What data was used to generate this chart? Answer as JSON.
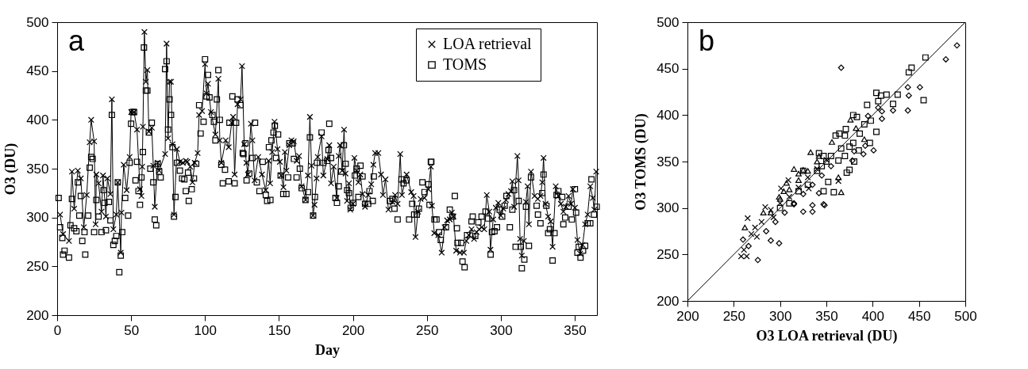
{
  "chart_data": [
    {
      "type": "line",
      "xlabel": "Day",
      "ylabel": "O3 (DU)",
      "annotations": [
        "a"
      ],
      "xlim": [
        0,
        365
      ],
      "xticks": [
        0,
        50,
        100,
        150,
        200,
        250,
        300,
        350
      ],
      "ylim": [
        200,
        500
      ],
      "yticks": [
        200,
        250,
        300,
        350,
        400,
        450,
        500
      ],
      "legend": "top right",
      "series": [
        {
          "name": "LOA retrieval",
          "marker": "cross",
          "color": "#000000",
          "x": [
            2,
            4,
            8,
            10,
            11.5,
            14,
            16,
            18,
            20,
            22,
            23,
            25,
            26,
            26.5,
            28,
            30,
            31,
            33,
            34,
            36,
            37,
            38,
            40,
            41,
            43,
            43.5,
            45,
            47,
            49,
            50,
            52,
            54,
            56,
            57,
            57.5,
            58,
            59,
            60,
            61,
            62,
            64,
            65,
            66,
            68,
            69,
            73,
            74,
            75,
            76,
            77,
            78,
            79,
            81,
            83,
            85,
            87,
            88,
            90,
            91.5,
            93,
            95,
            96,
            98,
            100,
            101,
            102,
            104,
            107,
            109,
            110,
            111,
            114,
            116,
            118,
            119,
            120,
            122,
            124,
            125,
            126.5,
            128,
            129,
            131,
            132,
            133.5,
            136,
            138.5,
            141,
            143,
            144,
            145.4,
            147,
            149,
            150.6,
            151.5,
            153,
            154,
            155,
            157,
            158.4,
            160,
            162,
            163.6,
            165.3,
            168,
            169.6,
            170.9,
            172,
            173,
            174,
            175.4,
            176.2,
            178.8,
            180,
            182.6,
            184,
            185.2,
            187,
            189,
            190.4,
            191.3,
            192.7,
            194,
            195,
            196,
            197.3,
            198.2,
            200,
            201,
            202.5,
            203.7,
            205,
            206.5,
            208.2,
            210.3,
            212.4,
            213.8,
            215,
            217.2,
            219,
            220.3,
            222,
            224,
            226.7,
            228.5,
            230.2,
            232,
            233.1,
            236.3,
            239.4,
            241,
            242.3,
            244,
            245.8,
            248.4,
            251,
            252.7,
            253.4,
            255,
            257.7,
            260,
            262,
            263.7,
            265.5,
            266.9,
            268,
            269.8,
            272.4,
            275,
            276.7,
            278.4,
            280.2,
            281.9,
            283.6,
            285.3,
            287,
            288.8,
            290.5,
            292.2,
            293,
            294.8,
            296.6,
            298.3,
            300,
            301.7,
            303.5,
            305.2,
            306.9,
            307.8,
            309,
            311.2,
            312,
            313,
            314.2,
            315.6,
            317,
            318.1,
            319,
            320.4,
            322.8,
            325,
            326.8,
            328,
            328.9,
            330.2,
            332,
            333.7,
            335,
            337.1,
            338.9,
            340.6,
            342.3,
            344,
            345.8,
            347.5,
            348.7,
            350.1,
            351.8,
            353.6,
            355.3,
            357,
            358.7,
            360.5,
            362.2,
            363.2,
            364.5
          ],
          "values": [
            303,
            283,
            276,
            347,
            309,
            348,
            340,
            290,
            323,
            377,
            400,
            378,
            293,
            344,
            335,
            306,
            343,
            301,
            340,
            324,
            421,
            288,
            303,
            336,
            264,
            305,
            354,
            328,
            362,
            408,
            408,
            390,
            329,
            322,
            352,
            393,
            490,
            439,
            451,
            388,
            392,
            353,
            311,
            356,
            348,
            365,
            478,
            381,
            439,
            439,
            375,
            303,
            370,
            357,
            356,
            358,
            357,
            352,
            336,
            356,
            366,
            405,
            409,
            457,
            427,
            437,
            408,
            385,
            442,
            379,
            356,
            379,
            372,
            397,
            403,
            344,
            416,
            421,
            455,
            375,
            356,
            344,
            396,
            379,
            338,
            362,
            344,
            328,
            358,
            335,
            367,
            398,
            370,
            357,
            343,
            331,
            367,
            348,
            374,
            379,
            378,
            358,
            363,
            332,
            318,
            343,
            403,
            353,
            302,
            313,
            340,
            362,
            383,
            343,
            360,
            374,
            335,
            352,
            320,
            363,
            374,
            348,
            390,
            345,
            317,
            335,
            308,
            314,
            361,
            348,
            336,
            344,
            324,
            311,
            323,
            334,
            354,
            366,
            366,
            344,
            323,
            339,
            308,
            316,
            323,
            314,
            365,
            323,
            344,
            326,
            322,
            280,
            306,
            319,
            320,
            329,
            352,
            312,
            284,
            282,
            264,
            290,
            297,
            298,
            305,
            301,
            266,
            264,
            264,
            276,
            282,
            288,
            278,
            285,
            288,
            290,
            288,
            323,
            306,
            267,
            298,
            310,
            315,
            302,
            309,
            318,
            324,
            327,
            337,
            311,
            363,
            338,
            278,
            261,
            276,
            316,
            332,
            293,
            347,
            322,
            319,
            322,
            336,
            361,
            314,
            301,
            296,
            270,
            332,
            322,
            314,
            306,
            311,
            322,
            314,
            329,
            310,
            277,
            263,
            272,
            293,
            303,
            332,
            320,
            308,
            347
          ]
        },
        {
          "name": "TOMS",
          "type": "scatter",
          "marker": "square",
          "color": "#000000",
          "x": [
            1,
            2,
            3.5,
            4,
            5,
            8,
            9,
            10,
            11.5,
            13,
            14,
            15,
            16,
            17,
            18.5,
            19,
            21,
            22,
            23,
            24,
            25,
            26.5,
            28,
            30,
            31.4,
            32,
            33,
            35,
            36,
            37,
            38,
            39,
            40,
            41,
            42,
            43,
            44,
            46,
            48,
            49,
            50,
            51,
            52,
            53,
            54,
            55,
            56,
            57,
            58,
            58.7,
            60,
            61,
            62,
            63,
            64,
            65,
            66,
            67,
            68,
            69,
            70,
            73,
            74,
            75,
            76,
            77,
            78,
            79,
            80,
            81,
            83,
            84.5,
            86,
            87,
            88.5,
            89,
            91,
            92.5,
            94,
            96,
            97,
            99,
            100,
            101,
            102,
            103,
            105,
            106,
            107,
            108,
            109,
            110,
            111,
            112,
            113.5,
            116,
            116.5,
            118.5,
            120,
            121,
            122,
            124,
            125.5,
            126,
            127.3,
            128.1,
            129.9,
            132,
            133.8,
            135,
            136.8,
            139,
            141.1,
            142,
            143.2,
            144.2,
            144.9,
            146.3,
            147.2,
            148,
            149.4,
            151.1,
            152.9,
            155,
            156.2,
            157,
            159.3,
            160.1,
            161.9,
            164.1,
            165.3,
            167.9,
            169.6,
            170.9,
            173.1,
            174.3,
            175.7,
            178.8,
            180,
            182.6,
            183.5,
            184,
            185.2,
            188.2,
            189.2,
            190.4,
            192.1,
            193.9,
            195.1,
            196.1,
            197.3,
            198.5,
            200.3,
            201.3,
            202.5,
            203.7,
            205.1,
            206.5,
            208.2,
            210.3,
            211.2,
            213.4,
            214.1,
            225,
            226.7,
            228.1,
            230.2,
            232.8,
            234.2,
            236.3,
            238,
            240.1,
            241.4,
            243.2,
            244.6,
            247,
            248.4,
            251,
            251.8,
            252.7,
            253,
            255.1,
            256.5,
            258.2,
            259.4,
            262.9,
            265.5,
            267.2,
            268.9,
            270.3,
            270.7,
            273.2,
            274.1,
            275.5,
            277.2,
            280.2,
            281,
            282.7,
            284.8,
            287,
            289.7,
            291.4,
            293.1,
            294,
            295.7,
            297.4,
            299.2,
            300.9,
            302.6,
            303.8,
            306.1,
            307.8,
            309,
            310,
            312.1,
            313.5,
            314.2,
            315.9,
            317,
            319,
            320.4,
            324.2,
            325.1,
            326.8,
            328,
            328.9,
            330.8,
            332,
            333.2,
            335,
            336.3,
            337.7,
            338.9,
            341.5,
            342.3,
            343.5,
            345.8,
            348,
            350.1,
            350.9,
            351.8,
            352.7,
            353.9,
            355.6,
            357,
            358.7,
            360.5,
            361.3,
            363,
            364.8
          ],
          "values": [
            320,
            290,
            279,
            262,
            266,
            259,
            292,
            319,
            289,
            286,
            336,
            302,
            322,
            276,
            285,
            262,
            302,
            351,
            362,
            360,
            285,
            318,
            301,
            285,
            328,
            315,
            287,
            316,
            297,
            405,
            272,
            276,
            281,
            336,
            244,
            261,
            285,
            320,
            302,
            356,
            396,
            408,
            408,
            338,
            357,
            327,
            313,
            341,
            367,
            474,
            430,
            430,
            387,
            350,
            397,
            336,
            298,
            292,
            355,
            347,
            341,
            452,
            460,
            390,
            421,
            405,
            372,
            301,
            321,
            356,
            348,
            340,
            339,
            327,
            346,
            317,
            329,
            340,
            355,
            415,
            386,
            398,
            462,
            424,
            446,
            423,
            405,
            398,
            379,
            421,
            451,
            400,
            354,
            335,
            349,
            337,
            397,
            424,
            335,
            397,
            421,
            415,
            366,
            365,
            376,
            338,
            345,
            361,
            397,
            336,
            327,
            357,
            323,
            317,
            372,
            318,
            379,
            387,
            394,
            361,
            385,
            343,
            324,
            324,
            341,
            376,
            376,
            360,
            341,
            350,
            330,
            318,
            326,
            382,
            302,
            321,
            356,
            387,
            356,
            358,
            369,
            396,
            361,
            320,
            315,
            332,
            347,
            374,
            355,
            328,
            325,
            310,
            315,
            343,
            350,
            321,
            353,
            342,
            314,
            314,
            327,
            317,
            342,
            317,
            319,
            309,
            298,
            339,
            335,
            338,
            298,
            314,
            303,
            303,
            309,
            336,
            326,
            334,
            313,
            357,
            357,
            298,
            298,
            285,
            277,
            290,
            308,
            301,
            322,
            289,
            274,
            274,
            255,
            249,
            282,
            296,
            301,
            281,
            295,
            301,
            306,
            299,
            262,
            285,
            286,
            290,
            308,
            301,
            312,
            322,
            290,
            308,
            328,
            270,
            317,
            270,
            248,
            257,
            311,
            271,
            341,
            312,
            303,
            294,
            325,
            344,
            312,
            284,
            288,
            256,
            284,
            323,
            327,
            321,
            293,
            300,
            311,
            298,
            329,
            305,
            264,
            270,
            259,
            266,
            271,
            294,
            294,
            339,
            303,
            311
          ]
        }
      ]
    },
    {
      "type": "scatter",
      "xlabel": "O3 LOA retrieval (DU)",
      "ylabel": "O3 TOMS (DU)",
      "annotations": [
        "b"
      ],
      "xlim": [
        200,
        500
      ],
      "xticks": [
        200,
        250,
        300,
        350,
        400,
        450,
        500
      ],
      "ylim": [
        200,
        500
      ],
      "yticks": [
        200,
        250,
        300,
        350,
        400,
        450,
        500
      ],
      "series": [
        {
          "marker": "square",
          "color": "#000000",
          "x": [
            457,
            442,
            439,
            455,
            427,
            415,
            409,
            404,
            422,
            406,
            394,
            379,
            383,
            398,
            391,
            404,
            386,
            371,
            360,
            364,
            370,
            397,
            379,
            366,
            375,
            385,
            380,
            370,
            363,
            372,
            375,
            352,
            358,
            347,
            342,
            325,
            347,
            355,
            300,
            310,
            320,
            330,
            340,
            345,
            350
          ],
          "values": [
            462,
            451,
            446,
            416,
            422,
            422,
            421,
            424,
            412,
            415,
            411,
            400,
            398,
            394,
            390,
            382,
            380,
            385,
            378,
            380,
            378,
            370,
            370,
            364,
            366,
            362,
            350,
            356,
            351,
            338,
            341,
            328,
            317,
            318,
            359,
            340,
            356,
            356,
            300,
            305,
            318,
            325,
            340,
            345,
            350
          ]
        },
        {
          "marker": "diamond",
          "color": "#000000",
          "x": [
            491,
            479,
            366,
            438,
            451,
            439,
            438,
            422,
            410,
            410,
            406,
            395,
            401,
            390,
            392,
            380,
            378,
            348,
            347,
            335,
            335,
            325,
            299,
            290,
            276,
            260,
            266,
            342,
            315,
            305,
            315,
            325,
            335,
            345,
            355,
            295,
            285
          ],
          "values": [
            475,
            460,
            451,
            430,
            430,
            421,
            405,
            405,
            396,
            404,
            408,
            399,
            362,
            358,
            367,
            361,
            351,
            303,
            304,
            303,
            296,
            296,
            262,
            265,
            244,
            266,
            259,
            316,
            304,
            295,
            305,
            315,
            325,
            335,
            345,
            285,
            275
          ]
        },
        {
          "marker": "triangle",
          "color": "#000000",
          "x": [
            333,
            315,
            320,
            325,
            342,
            356,
            376,
            382,
            391,
            363,
            366,
            299,
            282,
            262,
            304,
            307,
            290,
            300,
            310,
            320,
            330,
            340
          ],
          "values": [
            360,
            342,
            337,
            341,
            356,
            371,
            395,
            386,
            374,
            333,
            317,
            312,
            295,
            279,
            318,
            327,
            295,
            310,
            320,
            330,
            340,
            350
          ]
        },
        {
          "marker": "cross",
          "color": "#000000",
          "x": [
            258,
            264,
            261,
            265,
            301,
            309,
            273,
            269,
            275,
            284,
            363,
            293,
            331,
            280,
            290,
            300,
            310,
            320,
            330,
            340,
            350
          ],
          "values": [
            248,
            248,
            255,
            289,
            321,
            330,
            279,
            272,
            269,
            301,
            329,
            290,
            321,
            285,
            298,
            305,
            312,
            322,
            333,
            342,
            352
          ]
        },
        {
          "type": "line",
          "marker": "none",
          "color": "#000000",
          "x": [
            200,
            500
          ],
          "values": [
            200,
            500
          ]
        }
      ]
    }
  ]
}
